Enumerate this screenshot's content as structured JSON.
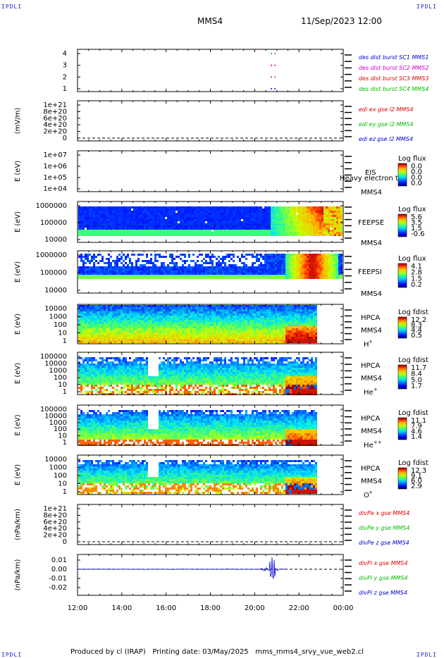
{
  "header": {
    "corner_label": "IPDLI",
    "spacecraft": "MMS4",
    "datetime": "11/Sep/2023 12:00"
  },
  "footer": {
    "produced_by": "Produced by cl (IRAP)",
    "printing_date": "Printing date: 03/May/2025",
    "file": "mms_mms4_srvy_vue_web2.cl"
  },
  "x_axis": {
    "ticks": [
      "12:00",
      "14:00",
      "16:00",
      "18:00",
      "20:00",
      "22:00",
      "00:00"
    ]
  },
  "colors": {
    "mms1": "#0000cc",
    "mms2": "#cc00cc",
    "mms3": "#dd0000",
    "mms4": "#00bb00",
    "blue": "#0000cc"
  },
  "chart_data": [
    {
      "type": "line",
      "id": "burst",
      "yticks": [
        "4",
        "3",
        "2",
        "1"
      ],
      "legend": [
        {
          "label": "des dist burst SC1 MMS1",
          "color": "#0000cc"
        },
        {
          "label": "des dist burst SC2 MMS2",
          "color": "#cc00cc"
        },
        {
          "label": "des dist burst SC3 MMS3",
          "color": "#dd0000"
        },
        {
          "label": "des dist burst SC4 MMS4",
          "color": "#00bb00"
        }
      ]
    },
    {
      "type": "line",
      "id": "edi",
      "ylabel": "(mV/m)",
      "yticks": [
        "1e+21",
        "8e+20",
        "6e+20",
        "4e+20",
        "2e+20",
        "0"
      ],
      "legend": [
        {
          "label": "edi ex gse l2 MMS4",
          "color": "#dd0000"
        },
        {
          "label": "edi ey gse l2 MMS4",
          "color": "#00bb00"
        },
        {
          "label": "edi ez gse l2 MMS4",
          "color": "#0000cc"
        }
      ]
    },
    {
      "type": "heatmap",
      "id": "eis",
      "ylabel": "E (eV)",
      "yticks": [
        "1e+07",
        "1e+06",
        "1e+05",
        "1e+04"
      ],
      "inst": "EIS",
      "sc": "MMS4",
      "overlay": "Heavy electron to",
      "cbar_title": "Log flux",
      "cbar_ticks": [
        "0.0",
        "0.0",
        "0.0",
        "0.0"
      ]
    },
    {
      "type": "heatmap",
      "id": "feepse",
      "ylabel": "E (eV)",
      "yticks": [
        "1000000",
        "100000",
        "10000"
      ],
      "inst": "FEEPSE",
      "sc": "MMS4",
      "cbar_title": "Log flux",
      "cbar_ticks": [
        "5.6",
        "3.5",
        "1.5",
        "-0.6"
      ]
    },
    {
      "type": "heatmap",
      "id": "feepsi",
      "ylabel": "E (eV)",
      "yticks": [
        "1000000",
        "100000",
        "10000"
      ],
      "inst": "FEEPSI",
      "sc": "MMS4",
      "cbar_title": "Log flux",
      "cbar_ticks": [
        "4.1",
        "2.8",
        "1.5",
        "0.2"
      ]
    },
    {
      "type": "heatmap",
      "id": "hpca_h",
      "ylabel": "E (eV)",
      "yticks": [
        "10000",
        "1000",
        "100",
        "10",
        "1"
      ],
      "inst": "HPCA",
      "sc": "MMS4",
      "species": "H",
      "charge": "+",
      "cbar_title": "Log fdist",
      "cbar_ticks": [
        "12.2",
        "8.3",
        "4.4",
        "0.5"
      ]
    },
    {
      "type": "heatmap",
      "id": "hpca_he",
      "ylabel": "E (eV)",
      "yticks": [
        "100000",
        "10000",
        "1000",
        "100",
        "10",
        "1"
      ],
      "inst": "HPCA",
      "sc": "MMS4",
      "species": "He",
      "charge": "+",
      "cbar_title": "Log fdist",
      "cbar_ticks": [
        "11.7",
        "8.4",
        "5.0",
        "1.7"
      ]
    },
    {
      "type": "heatmap",
      "id": "hpca_hepp",
      "ylabel": "E (eV)",
      "yticks": [
        "100000",
        "10000",
        "1000",
        "100",
        "10",
        "1"
      ],
      "inst": "HPCA",
      "sc": "MMS4",
      "species": "He",
      "charge": "++",
      "cbar_title": "Log fdist",
      "cbar_ticks": [
        "11.1",
        "7.9",
        "4.6",
        "1.4"
      ]
    },
    {
      "type": "heatmap",
      "id": "hpca_o",
      "ylabel": "E (eV)",
      "yticks": [
        "10000",
        "1000",
        "100",
        "10",
        "1"
      ],
      "inst": "HPCA",
      "sc": "MMS4",
      "species": "O",
      "charge": "+",
      "cbar_title": "Log fdist",
      "cbar_ticks": [
        "12.3",
        "9.1",
        "6.0",
        "2.9"
      ]
    },
    {
      "type": "line",
      "id": "divpe",
      "ylabel": "(nPa/km)",
      "yticks": [
        "1e+21",
        "8e+20",
        "6e+20",
        "4e+20",
        "2e+20",
        "0"
      ],
      "legend": [
        {
          "label": "divPe x gse MMS4",
          "color": "#dd0000"
        },
        {
          "label": "divPe y gse MMS4",
          "color": "#00bb00"
        },
        {
          "label": "divPe z gse MMS4",
          "color": "#0000cc"
        }
      ]
    },
    {
      "type": "line",
      "id": "divpi",
      "ylabel": "(nPa/km)",
      "yticks": [
        "0.01",
        "0.00",
        "-0.01",
        "-0.02"
      ],
      "ylim": [
        -0.025,
        0.015
      ],
      "legend": [
        {
          "label": "divPi x gse MMS4",
          "color": "#dd0000"
        },
        {
          "label": "divPi y gse MMS4",
          "color": "#00bb00"
        },
        {
          "label": "divPi z gse MMS4",
          "color": "#0000cc"
        }
      ]
    }
  ]
}
